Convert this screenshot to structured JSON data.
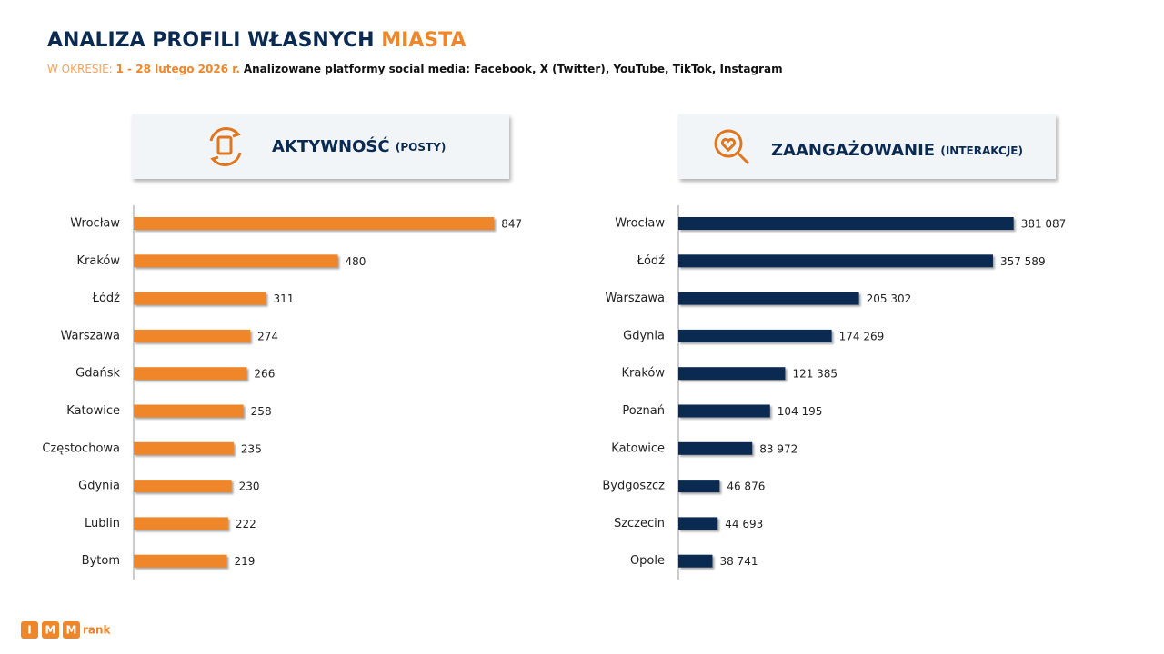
{
  "header": {
    "title": "ANALIZA PROFILI WŁASNYCH",
    "title_highlight": "MIASTA",
    "period_label": "W OKRESIE:",
    "period": "1 - 28 lutego 2026 r.",
    "platforms": "Analizowane platformy social media: Facebook, X (Twitter), YouTube, TikTok, Instagram"
  },
  "logo": {
    "letters": [
      "I",
      "M",
      "M"
    ],
    "text": "rank"
  },
  "chart_data": [
    {
      "type": "bar",
      "orientation": "horizontal",
      "title": "AKTYWNOŚĆ",
      "subtitle": "(POSTY)",
      "categories": [
        "Wrocław",
        "Kraków",
        "Łódź",
        "Warszawa",
        "Gdańsk",
        "Katowice",
        "Częstochowa",
        "Gdynia",
        "Lublin",
        "Bytom"
      ],
      "values": [
        847,
        480,
        311,
        274,
        266,
        258,
        235,
        230,
        222,
        219
      ],
      "color": "#f0862a",
      "xlim": [
        0,
        900
      ]
    },
    {
      "type": "bar",
      "orientation": "horizontal",
      "title": "ZAANGAŻOWANIE",
      "subtitle": "(INTERAKCJE)",
      "categories": [
        "Wrocław",
        "Łódź",
        "Warszawa",
        "Gdynia",
        "Kraków",
        "Poznań",
        "Katowice",
        "Bydgoszcz",
        "Szczecin",
        "Opole"
      ],
      "values": [
        381087,
        357589,
        205302,
        174269,
        121385,
        104195,
        83972,
        46876,
        44693,
        38741
      ],
      "value_labels": [
        "381 087",
        "357 589",
        "205 302",
        "174 269",
        "121 385",
        "104 195",
        "83 972",
        "46 876",
        "44 693",
        "38 741"
      ],
      "color": "#0b2a52",
      "xlim": [
        0,
        400000
      ]
    }
  ]
}
